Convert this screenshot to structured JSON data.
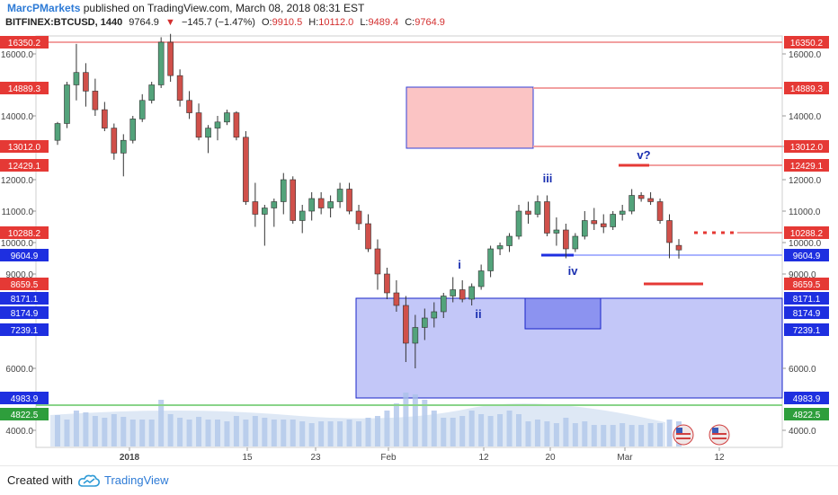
{
  "header": {
    "author": "MarcPMarkets",
    "published_text": "published on TradingView.com, March 08, 2018 08:31 EST",
    "symbol": "BITFINEX:BTCUSD, 1440",
    "last_price": "9764.9",
    "change_arrow": "▼",
    "change": "−145.7 (−1.47%)",
    "o_label": "O:",
    "o_value": "9910.5",
    "h_label": "H:",
    "h_value": "10112.0",
    "l_label": "L:",
    "l_value": "9489.4",
    "c_label": "C:",
    "c_value": "9764.9"
  },
  "footer": {
    "created_with": "Created with",
    "brand": "TradingView"
  },
  "colors": {
    "up": "#53a37b",
    "down": "#d0504a",
    "red_level": "#e53935",
    "blue_level": "#1e2fe0",
    "green_level": "#2e9e3c",
    "wave_label": "#1a2fb0",
    "zone_pink": "#fbc4c4",
    "zone_blue": "#b8bdf7",
    "volume": "#a8c0e8"
  },
  "chart_data": {
    "type": "candlestick",
    "y_ticks": [
      "16000.0",
      "14000.0",
      "13000.0",
      "12000.0",
      "11000.0",
      "10000.0",
      "9000.0",
      "6000.0",
      "4000.0"
    ],
    "x_ticks": [
      "2018",
      "15",
      "23",
      "Feb",
      "12",
      "20",
      "Mar",
      "12"
    ],
    "price_labels": [
      {
        "text": "16350.2",
        "kind": "red"
      },
      {
        "text": "14889.3",
        "kind": "red"
      },
      {
        "text": "13012.0",
        "kind": "red"
      },
      {
        "text": "12429.1",
        "kind": "red"
      },
      {
        "text": "10288.2",
        "kind": "red"
      },
      {
        "text": "9604.9",
        "kind": "blue"
      },
      {
        "text": "8659.5",
        "kind": "red"
      },
      {
        "text": "8171.1",
        "kind": "blue"
      },
      {
        "text": "8174.9",
        "kind": "blue"
      },
      {
        "text": "7239.1",
        "kind": "blue"
      },
      {
        "text": "4983.9",
        "kind": "blue"
      },
      {
        "text": "4822.5",
        "kind": "green"
      }
    ],
    "wave_labels": [
      "i",
      "ii",
      "iii",
      "iv",
      "v?"
    ],
    "candles": [
      [
        13200,
        13800,
        13050,
        13750
      ],
      [
        13750,
        15100,
        13600,
        15000
      ],
      [
        15000,
        16300,
        14500,
        15400
      ],
      [
        15400,
        15700,
        14300,
        14800
      ],
      [
        14800,
        15200,
        14000,
        14200
      ],
      [
        14200,
        14450,
        13500,
        13600
      ],
      [
        13600,
        13750,
        12600,
        12800
      ],
      [
        12800,
        13400,
        12100,
        13200
      ],
      [
        13200,
        14000,
        13100,
        13900
      ],
      [
        13900,
        14700,
        13800,
        14500
      ],
      [
        14500,
        15100,
        14400,
        15000
      ],
      [
        15000,
        16500,
        14900,
        16350
      ],
      [
        16350,
        16600,
        15100,
        15300
      ],
      [
        15300,
        15500,
        14300,
        14500
      ],
      [
        14500,
        14800,
        13900,
        14100
      ],
      [
        14100,
        14400,
        13200,
        13300
      ],
      [
        13300,
        13700,
        12800,
        13600
      ],
      [
        13600,
        14000,
        13200,
        13800
      ],
      [
        13800,
        14200,
        13700,
        14100
      ],
      [
        14100,
        14150,
        13200,
        13300
      ],
      [
        13300,
        13500,
        11200,
        11300
      ],
      [
        11300,
        11900,
        10500,
        10900
      ],
      [
        10900,
        11200,
        9900,
        11100
      ],
      [
        11100,
        11400,
        10500,
        11300
      ],
      [
        11300,
        12200,
        10900,
        12000
      ],
      [
        12000,
        12100,
        10600,
        10700
      ],
      [
        10700,
        11200,
        10300,
        11000
      ],
      [
        11000,
        11600,
        10700,
        11400
      ],
      [
        11400,
        11600,
        10900,
        11100
      ],
      [
        11100,
        11500,
        10800,
        11300
      ],
      [
        11300,
        11900,
        11100,
        11700
      ],
      [
        11700,
        11900,
        10900,
        11000
      ],
      [
        11000,
        11200,
        10400,
        10600
      ],
      [
        10600,
        10900,
        9700,
        9800
      ],
      [
        9800,
        10100,
        8500,
        9000
      ],
      [
        9000,
        9200,
        8200,
        8400
      ],
      [
        8400,
        8800,
        7800,
        8000
      ],
      [
        8000,
        8300,
        6200,
        6800
      ],
      [
        6800,
        7700,
        6000,
        7300
      ],
      [
        7300,
        7900,
        6900,
        7600
      ],
      [
        7600,
        8100,
        7300,
        7800
      ],
      [
        7800,
        8400,
        7600,
        8300
      ],
      [
        8300,
        8900,
        8100,
        8500
      ],
      [
        8500,
        8800,
        8100,
        8200
      ],
      [
        8200,
        8700,
        8000,
        8600
      ],
      [
        8600,
        9300,
        8500,
        9100
      ],
      [
        9100,
        9900,
        8900,
        9800
      ],
      [
        9800,
        10000,
        9600,
        9900
      ],
      [
        9900,
        10300,
        9700,
        10200
      ],
      [
        10200,
        11200,
        10100,
        11000
      ],
      [
        11000,
        11300,
        10600,
        10900
      ],
      [
        10900,
        11500,
        10800,
        11300
      ],
      [
        11300,
        11500,
        10200,
        10300
      ],
      [
        10300,
        10800,
        9900,
        10400
      ],
      [
        10400,
        10600,
        9500,
        9800
      ],
      [
        9800,
        10300,
        9700,
        10200
      ],
      [
        10200,
        11000,
        10100,
        10700
      ],
      [
        10700,
        11100,
        10400,
        10600
      ],
      [
        10600,
        10900,
        10300,
        10500
      ],
      [
        10500,
        11000,
        10400,
        10900
      ],
      [
        10900,
        11200,
        10700,
        11000
      ],
      [
        11000,
        11700,
        10900,
        11500
      ],
      [
        11500,
        11600,
        11300,
        11400
      ],
      [
        11400,
        11600,
        11200,
        11300
      ],
      [
        11300,
        11400,
        10600,
        10700
      ],
      [
        10700,
        10900,
        9500,
        10000
      ],
      [
        9910.5,
        10112,
        9489.4,
        9764.9
      ]
    ],
    "volumes": [
      35,
      30,
      40,
      38,
      34,
      32,
      36,
      33,
      30,
      30,
      30,
      52,
      36,
      32,
      30,
      33,
      30,
      30,
      28,
      34,
      30,
      34,
      32,
      30,
      30,
      30,
      28,
      26,
      28,
      28,
      28,
      30,
      28,
      32,
      34,
      40,
      48,
      60,
      58,
      52,
      40,
      32,
      32,
      34,
      40,
      36,
      34,
      36,
      40,
      36,
      28,
      30,
      28,
      26,
      32,
      26,
      28,
      24,
      24,
      24,
      26,
      24,
      24,
      26,
      26,
      30,
      28
    ]
  }
}
